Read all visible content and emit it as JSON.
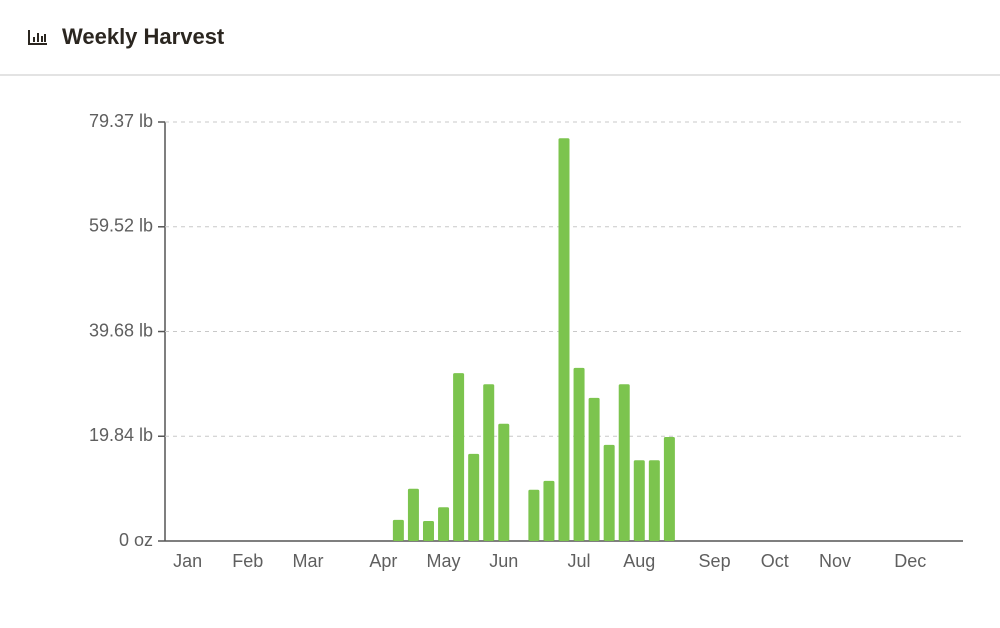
{
  "chart_data": {
    "type": "bar",
    "title": "Weekly Harvest",
    "categories": [
      null,
      "Jan",
      null,
      null,
      null,
      "Feb",
      null,
      null,
      null,
      "Mar",
      null,
      null,
      null,
      null,
      "Apr",
      null,
      null,
      null,
      "May",
      null,
      null,
      null,
      "Jun",
      null,
      null,
      null,
      null,
      "Jul",
      null,
      null,
      null,
      "Aug",
      null,
      null,
      null,
      null,
      "Sep",
      null,
      null,
      null,
      "Oct",
      null,
      null,
      null,
      "Nov",
      null,
      null,
      null,
      null,
      "Dec",
      null,
      null,
      null
    ],
    "values": [
      null,
      null,
      null,
      null,
      null,
      null,
      null,
      null,
      null,
      null,
      null,
      null,
      null,
      null,
      null,
      4.0,
      9.9,
      3.8,
      6.4,
      31.8,
      16.5,
      29.7,
      22.2,
      null,
      9.7,
      11.4,
      76.3,
      32.8,
      27.1,
      18.2,
      29.7,
      15.3,
      15.3,
      19.7,
      null,
      null,
      null,
      null,
      null,
      null,
      null,
      null,
      null,
      null,
      null,
      null,
      null,
      null,
      null,
      null,
      null,
      null,
      null
    ],
    "color": "#7cc44e",
    "ylim": [
      0,
      79.37
    ],
    "yticks": [
      {
        "value": 0,
        "label": "0 oz"
      },
      {
        "value": 19.84,
        "label": "19.84 lb"
      },
      {
        "value": 39.68,
        "label": "39.68 lb"
      },
      {
        "value": 59.52,
        "label": "59.52 lb"
      },
      {
        "value": 79.37,
        "label": "79.37 lb"
      }
    ],
    "grid": true
  }
}
